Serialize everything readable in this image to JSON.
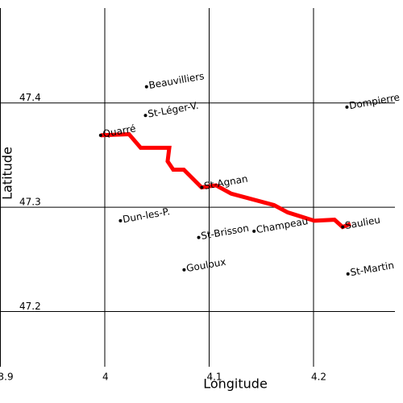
{
  "chart_data": {
    "type": "scatter",
    "xlabel": "Longitude",
    "ylabel": "Latitude",
    "xlim": [
      3.9,
      4.278
    ],
    "ylim": [
      47.147,
      47.491
    ],
    "xticks": [
      3.9,
      4,
      4.1,
      4.2
    ],
    "yticks": [
      47.2,
      47.3,
      47.4
    ],
    "grid": true,
    "points": {
      "color": "#000000",
      "labels": [
        "Beauvilliers",
        "St-Léger-V.",
        "Quarré",
        "Dompierre",
        "St-Agnan",
        "Dun-les-P.",
        "St-Brisson",
        "Champeau",
        "Saulieu",
        "St-Martin",
        "Gouloux"
      ],
      "x": [
        4.04,
        4.039,
        3.996,
        4.232,
        4.093,
        4.015,
        4.09,
        4.143,
        4.228,
        4.233,
        4.076
      ],
      "y": [
        47.4155,
        47.388,
        47.369,
        47.396,
        47.319,
        47.287,
        47.271,
        47.277,
        47.281,
        47.236,
        47.24
      ]
    },
    "track": {
      "color": "#ff0000",
      "x": [
        3.9961,
        4.0232,
        4.0344,
        4.0618,
        4.0602,
        4.0656,
        4.0757,
        4.0927,
        4.1066,
        4.1212,
        4.1622,
        4.1753,
        4.2008,
        4.2201,
        4.2278,
        4.2355
      ],
      "y": [
        47.369,
        47.37,
        47.357,
        47.357,
        47.344,
        47.336,
        47.336,
        47.319,
        47.321,
        47.313,
        47.302,
        47.295,
        47.287,
        47.288,
        47.281,
        47.284
      ]
    }
  }
}
